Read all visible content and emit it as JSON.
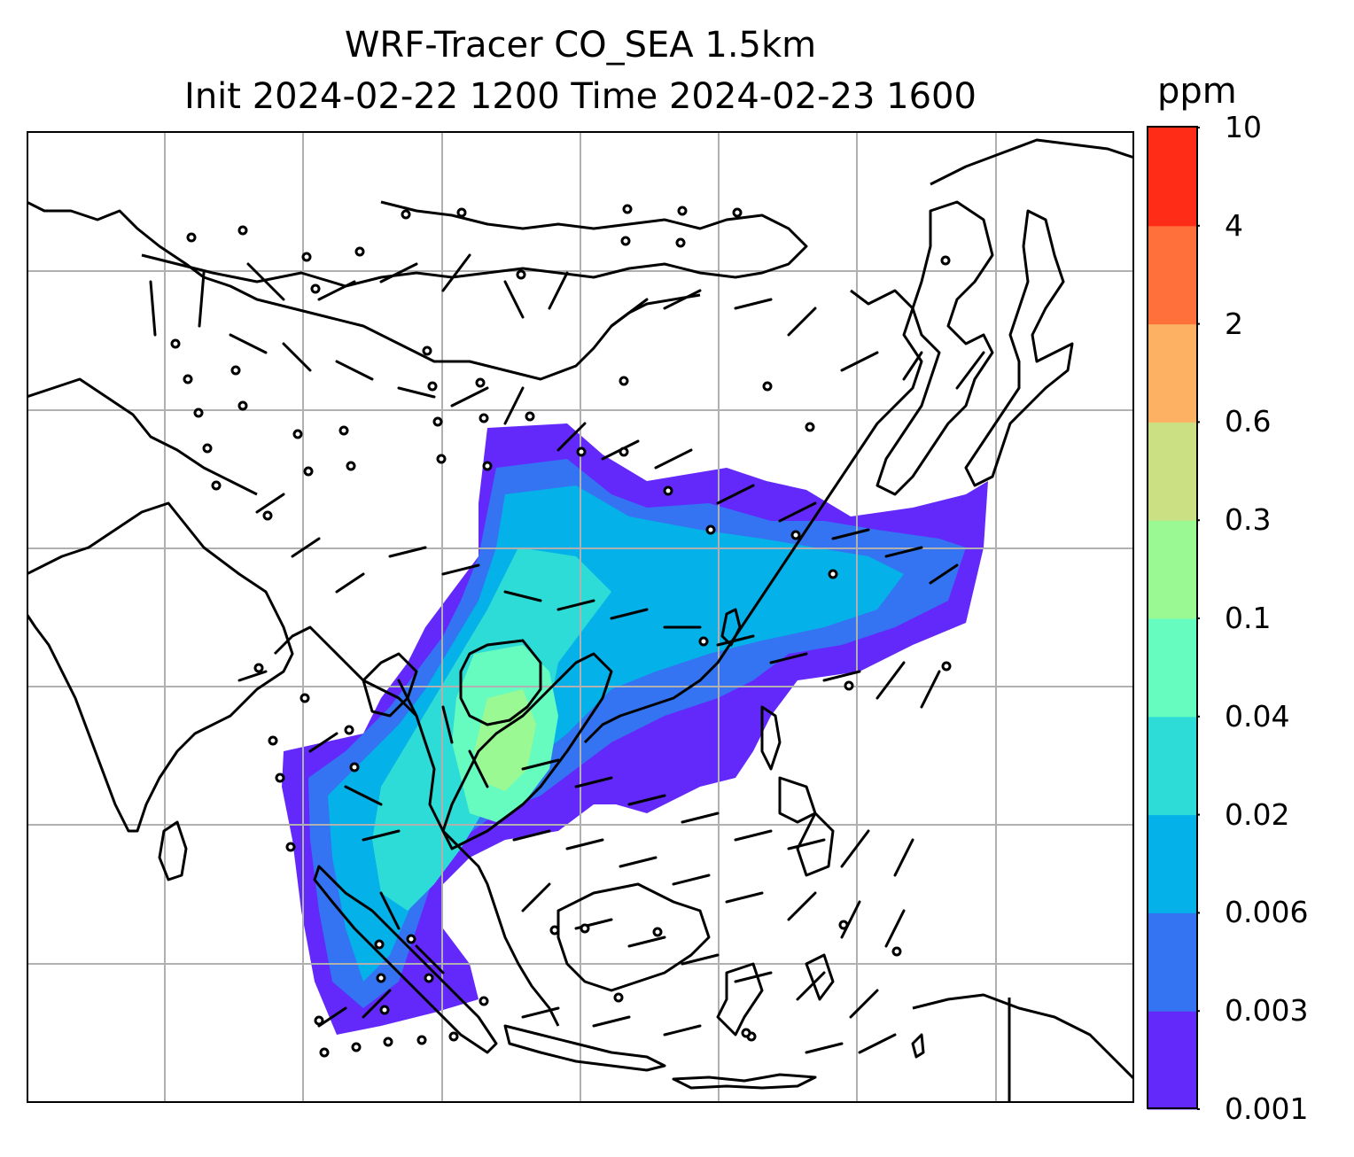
{
  "title": {
    "line1": "WRF-Tracer CO_SEA 1.5km",
    "line2": "Init 2024-02-22 1200 Time 2024-02-23 1600"
  },
  "colorbar": {
    "unit": "ppm",
    "levels": [
      "0.001",
      "0.003",
      "0.006",
      "0.02",
      "0.04",
      "0.1",
      "0.3",
      "0.6",
      "2",
      "4",
      "10"
    ],
    "colors": [
      "#6329fb",
      "#3474f2",
      "#04b1e8",
      "#2ddcd6",
      "#66fbbf",
      "#9bf994",
      "#cbe082",
      "#fdb163",
      "#ff703b",
      "#ff2c18"
    ]
  },
  "map": {
    "grid_lines": true,
    "background": "#ffffff",
    "coastline_color": "#000000",
    "wind_barb_color": "#000000"
  }
}
